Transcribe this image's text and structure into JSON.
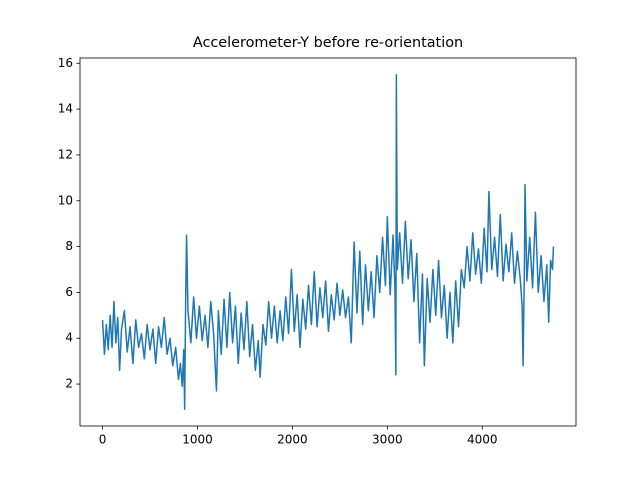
{
  "chart_data": {
    "type": "line",
    "title": "Accelerometer-Y before re-orientation",
    "x": [
      0,
      20,
      40,
      60,
      80,
      100,
      120,
      140,
      160,
      180,
      200,
      230,
      260,
      290,
      320,
      350,
      380,
      410,
      440,
      470,
      500,
      530,
      560,
      590,
      620,
      650,
      680,
      710,
      740,
      770,
      800,
      820,
      840,
      855,
      865,
      875,
      885,
      900,
      930,
      960,
      990,
      1020,
      1050,
      1080,
      1110,
      1140,
      1170,
      1200,
      1220,
      1250,
      1280,
      1310,
      1340,
      1370,
      1400,
      1430,
      1460,
      1490,
      1520,
      1550,
      1580,
      1610,
      1640,
      1660,
      1690,
      1720,
      1750,
      1780,
      1810,
      1840,
      1870,
      1900,
      1930,
      1960,
      1990,
      2020,
      2050,
      2080,
      2110,
      2140,
      2170,
      2200,
      2230,
      2260,
      2290,
      2320,
      2350,
      2380,
      2410,
      2440,
      2470,
      2500,
      2530,
      2560,
      2590,
      2620,
      2650,
      2680,
      2710,
      2740,
      2770,
      2800,
      2830,
      2860,
      2890,
      2920,
      2950,
      2980,
      3000,
      3030,
      3060,
      3080,
      3090,
      3095,
      3105,
      3130,
      3160,
      3190,
      3220,
      3250,
      3280,
      3310,
      3340,
      3370,
      3390,
      3420,
      3450,
      3480,
      3510,
      3540,
      3570,
      3600,
      3630,
      3660,
      3690,
      3720,
      3750,
      3780,
      3810,
      3840,
      3870,
      3900,
      3930,
      3960,
      3990,
      4020,
      4050,
      4070,
      4100,
      4130,
      4160,
      4190,
      4220,
      4250,
      4280,
      4310,
      4340,
      4370,
      4400,
      4420,
      4430,
      4445,
      4450,
      4470,
      4500,
      4530,
      4560,
      4590,
      4620,
      4650,
      4680,
      4700,
      4720,
      4740,
      4750
    ],
    "values": [
      4.8,
      3.3,
      4.6,
      3.5,
      5.0,
      3.6,
      5.6,
      3.8,
      4.9,
      2.6,
      4.4,
      5.2,
      3.4,
      4.5,
      2.9,
      4.8,
      3.6,
      4.2,
      3.1,
      4.6,
      3.5,
      4.4,
      2.9,
      4.5,
      3.6,
      4.9,
      3.3,
      4.0,
      2.8,
      3.6,
      2.2,
      2.9,
      1.9,
      3.5,
      0.9,
      5.5,
      8.5,
      5.2,
      3.8,
      5.8,
      4.0,
      5.4,
      3.9,
      5.0,
      3.6,
      5.6,
      4.2,
      1.7,
      5.2,
      3.3,
      5.7,
      3.6,
      6.0,
      3.8,
      5.4,
      2.9,
      5.1,
      3.5,
      5.6,
      3.2,
      4.6,
      2.6,
      3.9,
      2.3,
      4.6,
      3.7,
      5.6,
      4.0,
      5.4,
      3.8,
      5.2,
      3.9,
      5.8,
      4.2,
      7.0,
      4.3,
      5.9,
      3.6,
      5.7,
      4.4,
      6.3,
      4.6,
      6.9,
      4.5,
      6.2,
      4.9,
      6.5,
      4.3,
      5.9,
      4.8,
      6.4,
      5.0,
      6.1,
      4.9,
      5.8,
      3.8,
      8.2,
      5.1,
      7.8,
      4.6,
      7.2,
      5.2,
      6.9,
      4.9,
      7.6,
      6.0,
      8.4,
      6.3,
      9.3,
      5.9,
      8.5,
      6.2,
      2.4,
      15.5,
      7.0,
      8.6,
      6.4,
      9.1,
      6.6,
      8.3,
      5.6,
      7.7,
      3.8,
      6.8,
      2.8,
      6.6,
      4.7,
      7.0,
      5.0,
      7.4,
      4.9,
      6.3,
      4.0,
      6.0,
      3.8,
      6.5,
      4.5,
      7.0,
      6.2,
      8.0,
      6.5,
      8.6,
      6.8,
      7.9,
      6.4,
      8.8,
      6.9,
      10.4,
      7.0,
      8.4,
      6.7,
      9.4,
      6.5,
      8.1,
      6.9,
      8.6,
      6.4,
      7.8,
      6.6,
      5.4,
      2.8,
      7.5,
      10.7,
      6.5,
      8.4,
      6.2,
      9.5,
      6.0,
      7.6,
      5.6,
      7.2,
      4.7,
      7.4,
      7.0,
      8.0
    ],
    "color": "#1f77b4",
    "xlim": [
      -237.5,
      4987.5
    ],
    "xticks": [
      0,
      1000,
      2000,
      3000,
      4000
    ],
    "ylim": [
      0.17,
      16.23
    ],
    "yticks": [
      2,
      4,
      6,
      8,
      10,
      12,
      14,
      16
    ],
    "grid": false
  }
}
